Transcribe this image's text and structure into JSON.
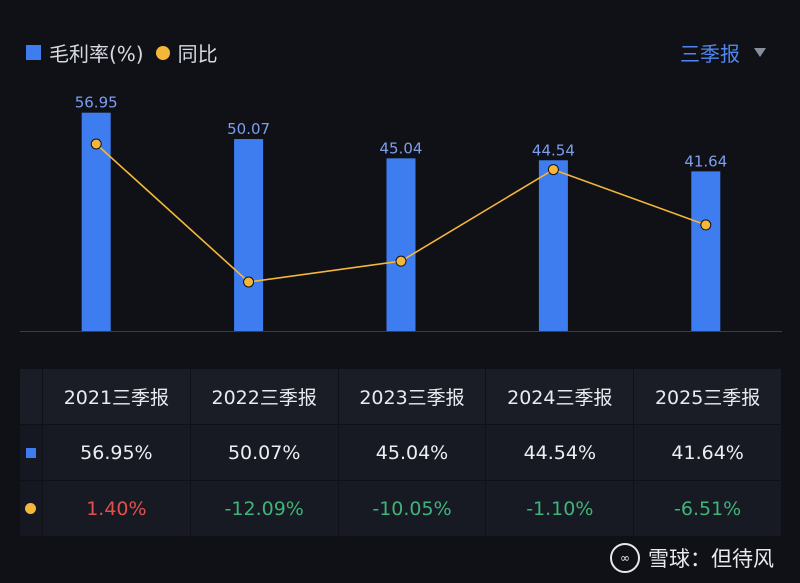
{
  "legend": {
    "bar_label": "毛利率(%)",
    "line_label": "同比"
  },
  "period_selector": {
    "label": "三季报"
  },
  "chart_data": {
    "type": "bar",
    "title": "",
    "categories": [
      "2021三季报",
      "2022三季报",
      "2023三季报",
      "2024三季报",
      "2025三季报"
    ],
    "series": [
      {
        "name": "毛利率(%)",
        "type": "bar",
        "values": [
          56.95,
          50.07,
          45.04,
          44.54,
          41.64
        ],
        "labels": [
          "56.95",
          "50.07",
          "45.04",
          "44.54",
          "41.64"
        ]
      },
      {
        "name": "同比",
        "type": "line",
        "values": [
          1.4,
          -12.09,
          -10.05,
          -1.1,
          -6.51
        ]
      }
    ],
    "ylim": [
      0,
      60
    ],
    "colors": {
      "bar": "#3d7df0",
      "line": "#f5b73a",
      "bar_label": "#7f9df0"
    }
  },
  "table": {
    "headers": [
      "2021三季报",
      "2022三季报",
      "2023三季报",
      "2024三季报",
      "2025三季报"
    ],
    "rows": [
      {
        "marker": "bar",
        "values": [
          "56.95%",
          "50.07%",
          "45.04%",
          "44.54%",
          "41.64%"
        ],
        "signs": [
          "",
          "",
          "",
          "",
          ""
        ]
      },
      {
        "marker": "line",
        "values": [
          "1.40%",
          "-12.09%",
          "-10.05%",
          "-1.10%",
          "-6.51%"
        ],
        "signs": [
          "pos",
          "neg",
          "neg",
          "neg",
          "neg"
        ]
      }
    ]
  },
  "watermark": {
    "text": "雪球：但待风"
  }
}
